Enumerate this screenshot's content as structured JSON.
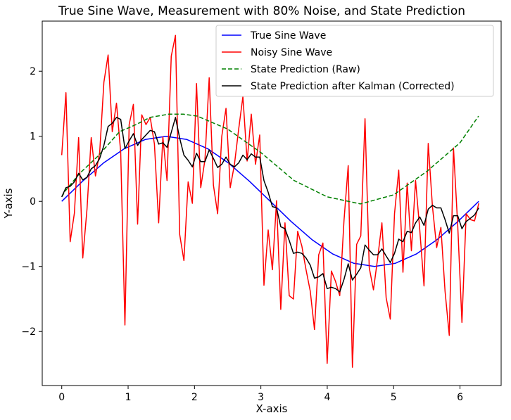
{
  "chart_data": {
    "type": "line",
    "title": "True Sine Wave, Measurement with 80% Noise, and State Prediction",
    "xlabel": "X-axis",
    "ylabel": "Y-axis",
    "xlim": [
      -0.294,
      6.62
    ],
    "ylim": [
      -2.83,
      2.77
    ],
    "xticks": [
      0,
      1,
      2,
      3,
      4,
      5,
      6
    ],
    "yticks": [
      -2,
      -1,
      0,
      1,
      2
    ],
    "xtick_labels": [
      "0",
      "1",
      "2",
      "3",
      "4",
      "5",
      "6"
    ],
    "ytick_labels": [
      "−2",
      "−1",
      "0",
      "1",
      "2"
    ],
    "grid": false,
    "legend_placement": "top-right",
    "series": [
      {
        "name": "True Sine Wave",
        "color": "#0000ff",
        "style": "solid",
        "x": [
          0,
          0.314,
          0.628,
          0.942,
          1.257,
          1.571,
          1.885,
          2.199,
          2.513,
          2.827,
          3.142,
          3.456,
          3.77,
          4.084,
          4.398,
          4.712,
          5.027,
          5.341,
          5.655,
          5.969,
          6.283
        ],
        "y": [
          0,
          0.309,
          0.588,
          0.809,
          0.951,
          1,
          0.951,
          0.809,
          0.588,
          0.309,
          0,
          -0.309,
          -0.588,
          -0.809,
          -0.951,
          -1,
          -0.951,
          -0.809,
          -0.588,
          -0.309,
          0
        ]
      },
      {
        "name": "Noisy Sine Wave",
        "color": "#ff0000",
        "style": "solid",
        "x_range": [
          0,
          6.283
        ],
        "y": [
          0.71,
          1.67,
          -0.62,
          -0.18,
          0.98,
          -0.87,
          -0.12,
          0.98,
          0.39,
          0.75,
          1.83,
          2.25,
          1.07,
          1.51,
          0.75,
          -1.9,
          1.18,
          1.49,
          -0.35,
          1.33,
          1.18,
          1.29,
          0.88,
          -0.33,
          0.99,
          0.32,
          2.23,
          2.55,
          -0.51,
          -0.91,
          0.3,
          -0.03,
          1.81,
          0.21,
          0.64,
          1.9,
          0.25,
          -0.19,
          1.0,
          1.43,
          0.21,
          0.57,
          1.11,
          1.61,
          0.62,
          1.34,
          0.57,
          1.02,
          -1.29,
          -0.44,
          -1.05,
          0.01,
          -1.66,
          -0.33,
          -1.45,
          -1.5,
          -0.46,
          -0.69,
          -1.05,
          -1.38,
          -1.97,
          -0.82,
          -0.64,
          -2.49,
          -1.07,
          -1.23,
          -1.45,
          -0.3,
          0.55,
          -2.55,
          -0.66,
          -0.53,
          1.27,
          -1.02,
          -1.36,
          -0.87,
          -0.33,
          -1.48,
          -1.81,
          -0.19,
          0.48,
          -1.09,
          0.28,
          -0.76,
          0.32,
          -0.44,
          -1.3,
          0.89,
          -0.08,
          -0.71,
          -0.4,
          -1.38,
          -2.06,
          0.82,
          -0.37,
          -1.86,
          -0.19,
          -0.28,
          -0.3,
          -0.03
        ]
      },
      {
        "name": "State Prediction (Raw)",
        "color": "#008000",
        "style": "dashed",
        "x": [
          0,
          0.06,
          0.27,
          0.55,
          0.87,
          1.12,
          1.33,
          1.61,
          1.83,
          2.04,
          2.5,
          3.0,
          3.5,
          4.0,
          4.5,
          5.0,
          5.5,
          6.0,
          6.28
        ],
        "y": [
          0.07,
          0.17,
          0.43,
          0.7,
          1.07,
          1.18,
          1.29,
          1.34,
          1.34,
          1.31,
          1.11,
          0.75,
          0.32,
          0.07,
          -0.04,
          0.1,
          0.46,
          0.9,
          1.31
        ]
      },
      {
        "name": "State Prediction after Kalman (Corrected)",
        "color": "#000000",
        "style": "solid",
        "x_range": [
          0,
          6.283
        ],
        "y": [
          0.07,
          0.21,
          0.23,
          0.3,
          0.43,
          0.33,
          0.37,
          0.5,
          0.55,
          0.66,
          0.86,
          1.15,
          1.2,
          1.29,
          1.26,
          0.81,
          0.93,
          1.04,
          0.86,
          0.95,
          1.02,
          1.09,
          1.07,
          0.88,
          0.9,
          0.83,
          1.06,
          1.29,
          0.97,
          0.71,
          0.63,
          0.53,
          0.74,
          0.61,
          0.61,
          0.79,
          0.66,
          0.52,
          0.57,
          0.68,
          0.57,
          0.53,
          0.59,
          0.71,
          0.64,
          0.73,
          0.68,
          0.68,
          0.32,
          0.14,
          -0.08,
          -0.1,
          -0.39,
          -0.42,
          -0.6,
          -0.8,
          -0.78,
          -0.8,
          -0.87,
          -0.98,
          -1.18,
          -1.16,
          -1.11,
          -1.34,
          -1.32,
          -1.34,
          -1.39,
          -1.2,
          -0.96,
          -1.21,
          -1.12,
          -1.02,
          -0.67,
          -0.75,
          -0.82,
          -0.82,
          -0.73,
          -0.84,
          -0.94,
          -0.8,
          -0.58,
          -0.62,
          -0.46,
          -0.48,
          -0.33,
          -0.24,
          -0.37,
          -0.12,
          -0.06,
          -0.1,
          -0.1,
          -0.28,
          -0.49,
          -0.22,
          -0.22,
          -0.42,
          -0.31,
          -0.26,
          -0.21,
          -0.1
        ]
      }
    ]
  }
}
